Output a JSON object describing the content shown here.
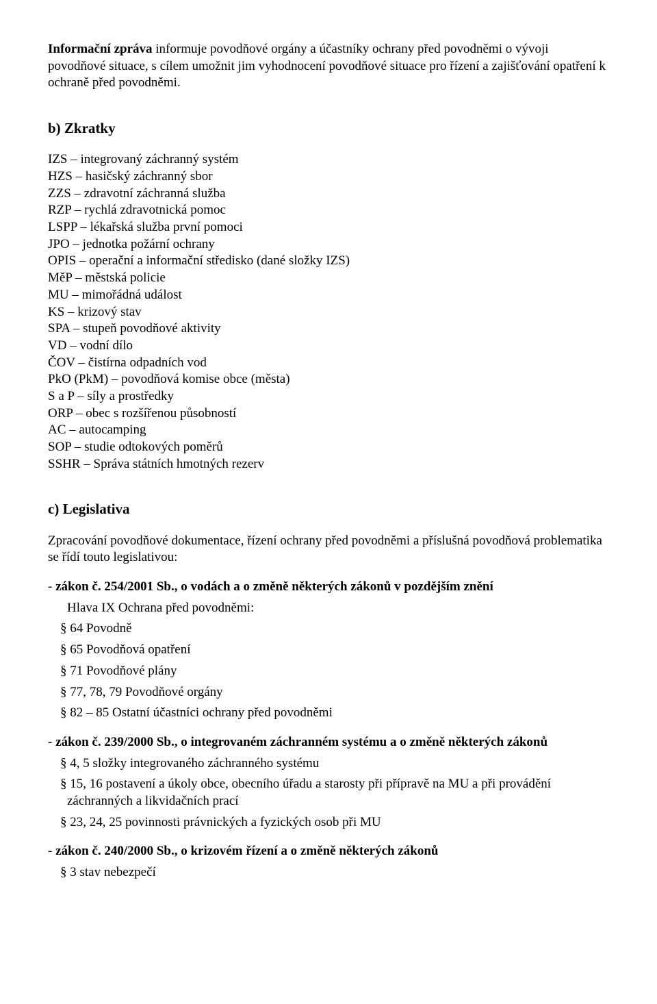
{
  "intro": {
    "lead": "Informační zpráva",
    "rest": " informuje povodňové orgány a účastníky ochrany před povodněmi o vývoji povodňové situace, s cílem umožnit jim vyhodnocení povodňové situace pro řízení a zajišťování opatření k ochraně před povodněmi."
  },
  "section_b": {
    "heading": "b) Zkratky",
    "items": [
      "IZS – integrovaný záchranný systém",
      "HZS – hasičský záchranný sbor",
      "ZZS – zdravotní záchranná služba",
      "RZP – rychlá zdravotnická pomoc",
      "LSPP – lékařská služba první pomoci",
      "JPO – jednotka požární ochrany",
      "OPIS – operační a informační středisko (dané složky IZS)",
      "MěP – městská policie",
      "MU – mimořádná událost",
      "KS – krizový stav",
      "SPA – stupeň povodňové aktivity",
      "VD – vodní dílo",
      "ČOV – čistírna odpadních vod",
      "PkO (PkM) – povodňová komise obce (města)",
      "S a P – síly a prostředky",
      "ORP – obec s rozšířenou působností",
      "AC – autocamping",
      "SOP – studie odtokových poměrů",
      "SSHR – Správa státních hmotných rezerv"
    ]
  },
  "section_c": {
    "heading": "c) Legislativa",
    "intro": "Zpracování povodňové dokumentace, řízení ochrany před povodněmi a příslušná povodňová problematika se řídí touto legislativou:",
    "laws": [
      {
        "prefix": "- ",
        "bold": "zákon č. 254/2001 Sb., o vodách a o změně některých zákonů v pozdějším znění",
        "sublines": [
          "Hlava IX Ochrana před povodněmi:",
          "§ 64 Povodně",
          "§ 65 Povodňová opatření",
          "§ 71 Povodňové plány",
          "§ 77, 78, 79 Povodňové orgány",
          "§ 82 – 85 Ostatní účastníci ochrany před povodněmi"
        ]
      },
      {
        "prefix": "- ",
        "bold": "zákon č. 239/2000 Sb., o integrovaném záchranném systému a o změně některých zákonů",
        "sublines": [
          "§ 4, 5 složky integrovaného záchranného systému",
          "§ 15, 16 postavení a úkoly obce, obecního úřadu a starosty při přípravě na MU a při provádění záchranných a likvidačních prací",
          "§ 23, 24, 25 povinnosti právnických a fyzických osob při MU"
        ]
      },
      {
        "prefix": "- ",
        "bold": "zákon č. 240/2000 Sb., o krizovém řízení a o změně některých zákonů",
        "sublines": [
          "§ 3 stav nebezpečí"
        ]
      }
    ]
  }
}
